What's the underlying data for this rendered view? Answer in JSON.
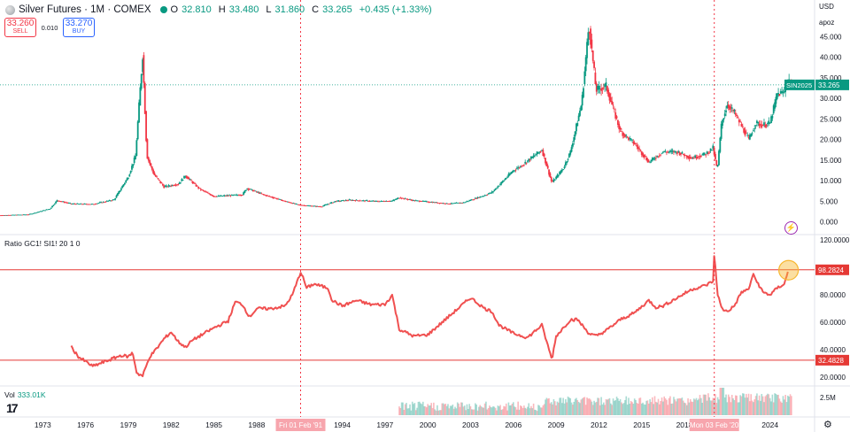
{
  "header": {
    "title": "Silver Futures · 1M · COMEX",
    "o_label": "O",
    "o_value": "32.810",
    "h_label": "H",
    "h_value": "33.480",
    "l_label": "L",
    "l_value": "31.860",
    "c_label": "C",
    "c_value": "33.265",
    "change": "+0.435 (+1.33%)"
  },
  "trade": {
    "sell_price": "33.260",
    "sell_label": "SELL",
    "spread": "0.010",
    "buy_price": "33.270",
    "buy_label": "BUY"
  },
  "scale": {
    "unit": "USD",
    "mode": "apoz"
  },
  "indicator": {
    "label": "Ratio GC1! SI1! 20 1 0"
  },
  "volume": {
    "label": "Vol",
    "value": "333.01K"
  },
  "icons": {
    "logo": "tradingview-logo",
    "settings": "gear-icon",
    "alert": "lightning-icon"
  },
  "colors": {
    "up": "#089981",
    "down": "#f23645",
    "ratio": "#f05050",
    "level": "#e53935",
    "marker": "#f7b731"
  },
  "chart_data": [
    {
      "type": "candlestick",
      "title": "Silver Futures · 1M · COMEX",
      "unit": "USD",
      "ylim": [
        -2,
        50
      ],
      "yticks": [
        0,
        5,
        10,
        15,
        20,
        25,
        30,
        35,
        40,
        45
      ],
      "ytick_labels": [
        "0.000",
        "5.000",
        "10.000",
        "15.000",
        "20.000",
        "25.000",
        "30.000",
        "35.000",
        "40.000",
        "45.000"
      ],
      "last_price": 33.265,
      "last_price_label": "33.265",
      "symbol_tag": "SIN2025",
      "approx_path": {
        "x": [
          1970.0,
          1972.0,
          1973.5,
          1974.0,
          1975.0,
          1976.5,
          1978.0,
          1979.0,
          1979.5,
          1980.0,
          1980.3,
          1980.8,
          1981.5,
          1982.5,
          1983.0,
          1984.0,
          1985.0,
          1987.0,
          1987.3,
          1988.5,
          1990.0,
          1991.0,
          1992.5,
          1993.5,
          1994.5,
          1996.5,
          1997.5,
          1998.0,
          1999.0,
          2001.5,
          2002.5,
          2004.0,
          2004.5,
          2006.0,
          2006.5,
          2008.0,
          2008.7,
          2009.5,
          2010.0,
          2010.8,
          2011.3,
          2011.8,
          2012.5,
          2013.5,
          2014.5,
          2015.5,
          2016.5,
          2017.5,
          2018.5,
          2019.5,
          2020.0,
          2020.3,
          2020.6,
          2021.0,
          2021.5,
          2022.5,
          2023.0,
          2023.5,
          2024.0,
          2024.5,
          2025.0,
          2025.3,
          2025.5
        ],
        "y": [
          1.6,
          1.8,
          3.2,
          5.2,
          4.4,
          4.3,
          5.4,
          11.0,
          16.0,
          40.5,
          16.0,
          11.5,
          8.5,
          9.2,
          11.2,
          8.0,
          6.2,
          6.6,
          8.2,
          6.6,
          5.0,
          4.1,
          3.7,
          5.0,
          5.3,
          5.0,
          5.1,
          5.9,
          5.2,
          4.4,
          4.7,
          6.5,
          7.2,
          12.5,
          13.5,
          17.5,
          9.5,
          13.0,
          17.0,
          29.0,
          48.0,
          32.0,
          33.0,
          22.0,
          19.0,
          14.5,
          17.0,
          17.0,
          15.5,
          16.5,
          18.0,
          12.5,
          24.0,
          28.5,
          26.5,
          20.0,
          24.0,
          23.5,
          24.0,
          31.0,
          31.5,
          34.5,
          33.3
        ]
      }
    },
    {
      "type": "line",
      "title": "Ratio GC1! SI1! 20 1 0",
      "ylim": [
        15,
        122
      ],
      "yticks": [
        20,
        40,
        60,
        80,
        100,
        120
      ],
      "ytick_labels": [
        "20.0000",
        "40.0000",
        "60.0000",
        "80.0000",
        "100.0000",
        "120.0000"
      ],
      "levels": [
        98.2824,
        32.4828
      ],
      "level_labels": [
        "98.2824",
        "32.4828"
      ],
      "series": [
        {
          "x": [
            1975.0,
            1975.5,
            1976.5,
            1977.5,
            1978.5,
            1979.0,
            1979.3,
            1979.6,
            1980.0,
            1980.5,
            1981.0,
            1981.5,
            1982.0,
            1982.5,
            1983.0,
            1983.5,
            1984.0,
            1985.0,
            1986.0,
            1986.5,
            1987.0,
            1987.5,
            1988.0,
            1989.0,
            1990.0,
            1990.5,
            1991.1,
            1991.5,
            1992.0,
            1993.0,
            1993.3,
            1994.0,
            1995.0,
            1996.0,
            1997.0,
            1997.5,
            1998.0,
            1999.0,
            2000.0,
            2001.0,
            2002.0,
            2003.0,
            2003.5,
            2004.0,
            2004.5,
            2005.0,
            2006.0,
            2007.0,
            2008.0,
            2008.7,
            2009.0,
            2010.0,
            2010.5,
            2011.3,
            2011.8,
            2012.5,
            2013.5,
            2014.5,
            2015.5,
            2016.0,
            2016.5,
            2017.5,
            2018.5,
            2019.5,
            2020.0,
            2020.1,
            2020.3,
            2020.6,
            2021.0,
            2021.5,
            2022.0,
            2022.5,
            2022.8,
            2023.5,
            2024.0,
            2024.5,
            2025.0,
            2025.3
          ],
          "y": [
            42,
            35,
            28,
            32,
            36,
            35,
            38,
            23,
            21,
            35,
            41,
            48,
            53,
            46,
            42,
            47,
            50,
            56,
            61,
            75,
            73,
            64,
            70,
            70,
            72,
            80,
            97,
            85,
            88,
            85,
            76,
            72,
            76,
            73,
            73,
            80,
            55,
            50,
            51,
            60,
            69,
            78,
            74,
            70,
            68,
            58,
            52,
            49,
            58,
            33,
            50,
            62,
            62,
            52,
            50,
            54,
            62,
            67,
            76,
            71,
            72,
            78,
            84,
            87,
            90,
            111,
            82,
            70,
            68,
            72,
            82,
            84,
            95,
            82,
            80,
            85,
            88,
            98
          ]
        }
      ]
    },
    {
      "type": "bar",
      "title": "Vol",
      "ytick_labels": [
        "2.5M"
      ],
      "current": "333.01K"
    }
  ],
  "time_axis": {
    "labels": [
      "1973",
      "1976",
      "1979",
      "1982",
      "1985",
      "1988",
      "1991",
      "1994",
      "1997",
      "2000",
      "2003",
      "2006",
      "2009",
      "2012",
      "2015",
      "2018",
      "2021",
      "2024"
    ],
    "cursor_tags": [
      "Fri 01 Feb '91",
      "Mon 03 Feb '20"
    ]
  }
}
